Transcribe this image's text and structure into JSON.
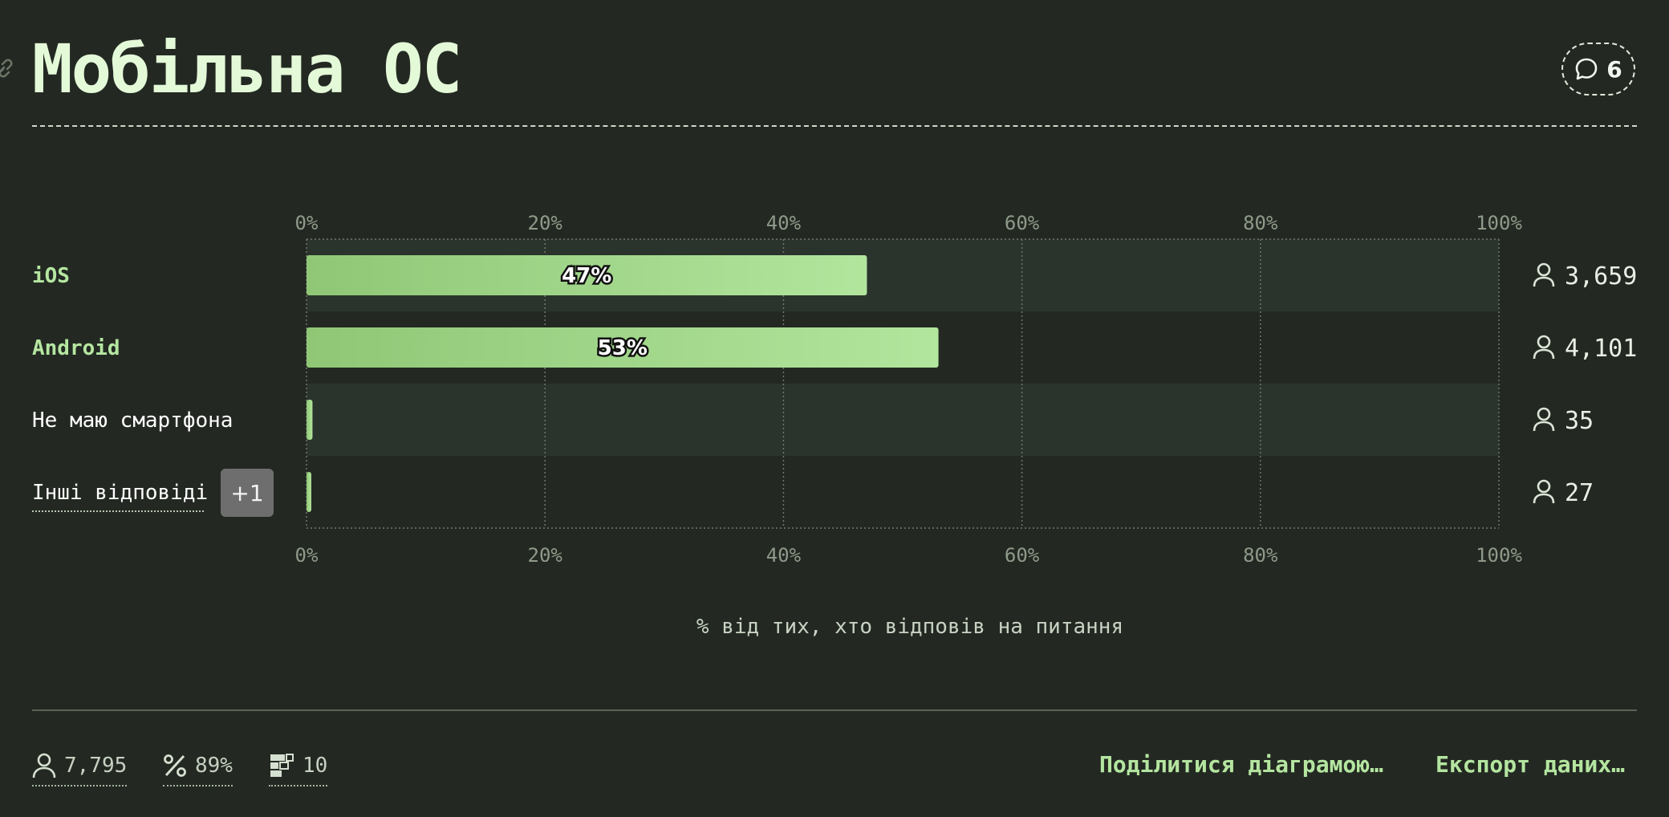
{
  "title": "Мобільна ОС",
  "comments": {
    "count": "6"
  },
  "chart_data": {
    "type": "bar",
    "orientation": "horizontal",
    "categories": [
      "iOS",
      "Android",
      "Не маю смартфона",
      "Інші відповіді"
    ],
    "values": [
      47,
      53,
      0.5,
      0.4
    ],
    "value_labels": [
      "47%",
      "53%",
      "",
      ""
    ],
    "counts": [
      "3,659",
      "4,101",
      "35",
      "27"
    ],
    "highlighted": [
      true,
      true,
      false,
      false
    ],
    "xlim": [
      0,
      100
    ],
    "xticks": [
      "0%",
      "20%",
      "40%",
      "60%",
      "80%",
      "100%"
    ],
    "xlabel": "% від тих, хто відповів на питання",
    "grid": true,
    "colors": {
      "bar_start": "#8fc776",
      "bar_end": "#b2e59d",
      "stripe": "#2b332d",
      "accent": "#b5e6a1"
    }
  },
  "others_badge": "+1",
  "footer": {
    "respondents": "7,795",
    "percent": "89%",
    "questions": "10",
    "share_label": "Поділитися діаграмою…",
    "export_label": "Експорт даних…"
  }
}
